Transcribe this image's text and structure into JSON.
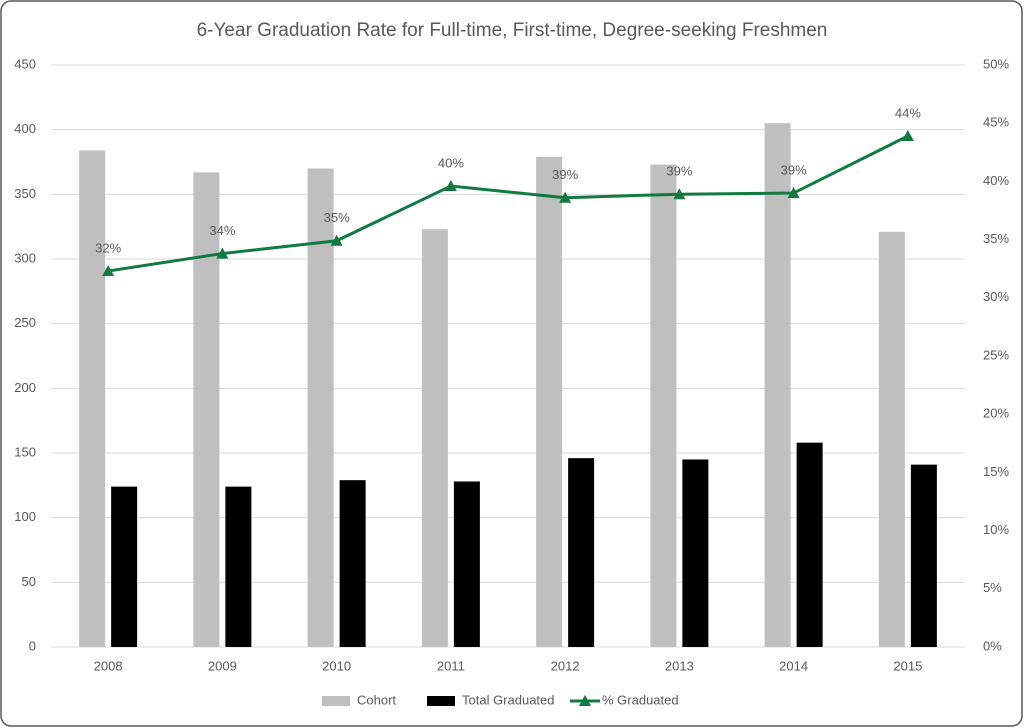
{
  "chart_data": {
    "type": "bar",
    "title": "6-Year Graduation Rate for Full-time, First-time, Degree-seeking Freshmen",
    "categories": [
      "2008",
      "2009",
      "2010",
      "2011",
      "2012",
      "2013",
      "2014",
      "2015"
    ],
    "series": [
      {
        "name": "Cohort",
        "type": "bar",
        "color": "#bfbfbf",
        "values": [
          384,
          367,
          370,
          323,
          379,
          373,
          405,
          321
        ]
      },
      {
        "name": "Total Graduated",
        "type": "bar",
        "color": "#000000",
        "values": [
          124,
          124,
          129,
          128,
          146,
          145,
          158,
          141
        ]
      },
      {
        "name": "% Graduated",
        "type": "line",
        "axis": "y2",
        "color": "#107a3f",
        "values": [
          32.3,
          33.8,
          34.9,
          39.6,
          38.6,
          38.9,
          39.0,
          43.9
        ],
        "value_labels": [
          "32%",
          "34%",
          "35%",
          "40%",
          "39%",
          "39%",
          "39%",
          "44%"
        ]
      }
    ],
    "ylim": [
      0,
      450
    ],
    "yticks": [
      0,
      50,
      100,
      150,
      200,
      250,
      300,
      350,
      400,
      450
    ],
    "y2lim": [
      0,
      50
    ],
    "y2ticks": [
      {
        "value": 0,
        "label": "0%"
      },
      {
        "value": 5,
        "label": "5%"
      },
      {
        "value": 10,
        "label": "10%"
      },
      {
        "value": 15,
        "label": "15%"
      },
      {
        "value": 20,
        "label": "20%"
      },
      {
        "value": 25,
        "label": "25%"
      },
      {
        "value": 30,
        "label": "30%"
      },
      {
        "value": 35,
        "label": "35%"
      },
      {
        "value": 40,
        "label": "40%"
      },
      {
        "value": 45,
        "label": "45%"
      },
      {
        "value": 50,
        "label": "50%"
      }
    ],
    "grid": true,
    "legend": "bottom"
  }
}
